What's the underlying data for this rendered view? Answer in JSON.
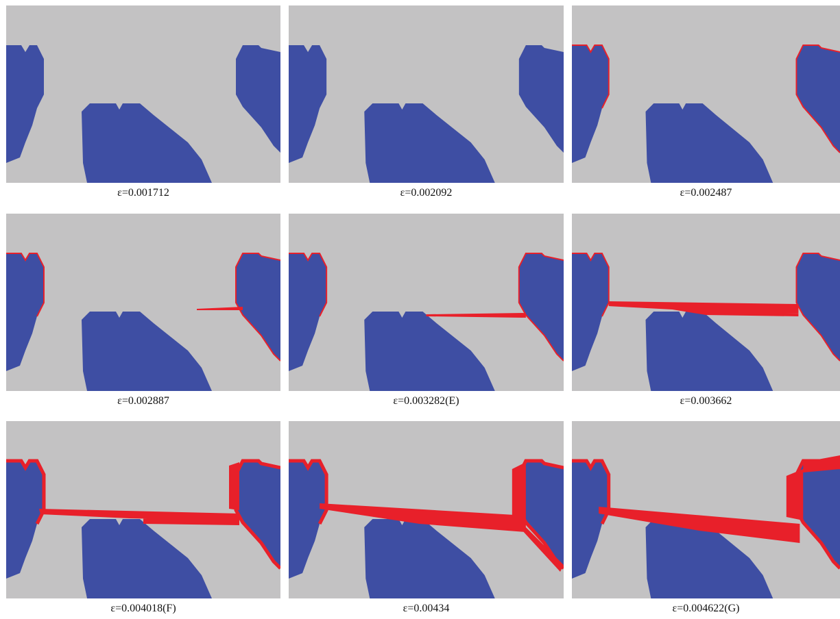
{
  "panels": [
    {
      "caption": "ε=0.001712"
    },
    {
      "caption": "ε=0.002092"
    },
    {
      "caption": "ε=0.002487"
    },
    {
      "caption": "ε=0.002887"
    },
    {
      "caption": "ε=0.003282(E)"
    },
    {
      "caption": "ε=0.003662"
    },
    {
      "caption": "ε=0.004018(F)"
    },
    {
      "caption": "ε=0.00434"
    },
    {
      "caption": "ε=0.004622(G)"
    }
  ]
}
